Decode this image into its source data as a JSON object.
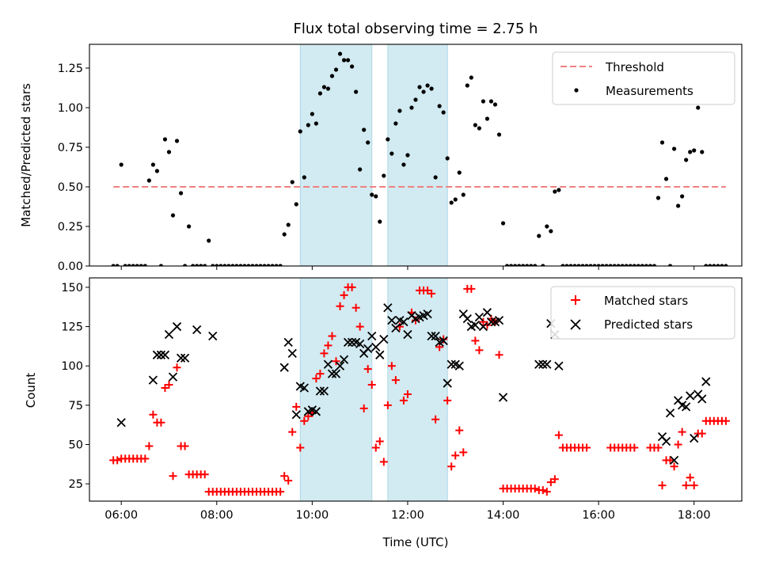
{
  "title": "Flux total observing time = 2.75 h",
  "colors": {
    "threshold": "#f08080",
    "matched": "#ff0000",
    "predicted": "#000000",
    "band": "#add8e6"
  },
  "chart_data": [
    {
      "type": "scatter",
      "ylabel": "Matched/Predicted stars",
      "ylim": [
        0,
        1.4
      ],
      "yticks": [
        "0.00",
        "0.25",
        "0.50",
        "0.75",
        "1.00",
        "1.25"
      ],
      "threshold": {
        "name": "Threshold",
        "value": 0.5,
        "x_range": [
          "05:50",
          "18:40"
        ]
      },
      "legend": {
        "placement": "upper right",
        "entries": [
          "Threshold",
          "Measurements"
        ]
      },
      "shaded_intervals": [
        [
          "09:45",
          "11:15"
        ],
        [
          "11:35",
          "12:50"
        ]
      ],
      "series": [
        {
          "name": "Measurements",
          "x": [
            "05:50",
            "05:55",
            "06:00",
            "06:05",
            "06:10",
            "06:15",
            "06:20",
            "06:25",
            "06:30",
            "06:35",
            "06:40",
            "06:45",
            "06:50",
            "06:55",
            "07:00",
            "07:05",
            "07:10",
            "07:15",
            "07:20",
            "07:25",
            "07:30",
            "07:35",
            "07:40",
            "07:45",
            "07:50",
            "07:55",
            "08:00",
            "08:05",
            "08:10",
            "08:15",
            "08:20",
            "08:25",
            "08:30",
            "08:35",
            "08:40",
            "08:45",
            "08:50",
            "08:55",
            "09:00",
            "09:05",
            "09:10",
            "09:15",
            "09:20",
            "09:25",
            "09:30",
            "09:35",
            "09:40",
            "09:45",
            "09:50",
            "09:55",
            "10:00",
            "10:05",
            "10:10",
            "10:15",
            "10:20",
            "10:25",
            "10:30",
            "10:35",
            "10:40",
            "10:45",
            "10:50",
            "10:55",
            "11:00",
            "11:05",
            "11:10",
            "11:15",
            "11:20",
            "11:25",
            "11:30",
            "11:35",
            "11:40",
            "11:45",
            "11:50",
            "11:55",
            "12:00",
            "12:05",
            "12:10",
            "12:15",
            "12:20",
            "12:25",
            "12:30",
            "12:35",
            "12:40",
            "12:45",
            "12:50",
            "12:55",
            "13:00",
            "13:05",
            "13:10",
            "13:15",
            "13:20",
            "13:25",
            "13:30",
            "13:35",
            "13:40",
            "13:45",
            "13:50",
            "13:55",
            "14:00",
            "14:05",
            "14:10",
            "14:15",
            "14:20",
            "14:25",
            "14:30",
            "14:35",
            "14:40",
            "14:45",
            "14:50",
            "14:55",
            "15:00",
            "15:05",
            "15:10",
            "15:15",
            "15:20",
            "15:25",
            "15:30",
            "15:35",
            "15:40",
            "15:45",
            "15:50",
            "15:55",
            "16:00",
            "16:05",
            "16:10",
            "16:15",
            "16:20",
            "16:25",
            "16:30",
            "16:35",
            "16:40",
            "16:45",
            "16:50",
            "16:55",
            "17:00",
            "17:05",
            "17:10",
            "17:15",
            "17:20",
            "17:25",
            "17:30",
            "17:35",
            "17:40",
            "17:45",
            "17:50",
            "17:55",
            "18:00",
            "18:05",
            "18:10",
            "18:15",
            "18:20",
            "18:25",
            "18:30",
            "18:35",
            "18:40"
          ],
          "y": [
            0.0,
            0.0,
            0.64,
            0.0,
            0.0,
            0.0,
            0.0,
            0.0,
            0.0,
            0.54,
            0.64,
            0.6,
            0.0,
            0.8,
            0.72,
            0.32,
            0.79,
            0.46,
            0.0,
            0.25,
            0.0,
            0.0,
            0.0,
            0.0,
            0.16,
            0.0,
            0.0,
            0.0,
            0.0,
            0.0,
            0.0,
            0.0,
            0.0,
            0.0,
            0.0,
            0.0,
            0.0,
            0.0,
            0.0,
            0.0,
            0.0,
            0.0,
            0.0,
            0.2,
            0.26,
            0.53,
            0.39,
            0.85,
            0.56,
            0.89,
            0.96,
            0.9,
            1.09,
            1.13,
            1.12,
            1.2,
            1.24,
            1.34,
            1.3,
            1.3,
            1.26,
            1.1,
            0.61,
            0.86,
            0.78,
            0.45,
            0.44,
            0.28,
            0.57,
            0.8,
            0.71,
            0.9,
            0.98,
            0.64,
            0.7,
            1.0,
            1.05,
            1.13,
            1.1,
            1.14,
            1.12,
            0.56,
            1.01,
            0.97,
            0.68,
            0.4,
            0.42,
            0.59,
            0.45,
            1.14,
            1.19,
            0.89,
            0.87,
            1.04,
            0.93,
            1.04,
            1.02,
            0.83,
            0.27,
            0.0,
            0.0,
            0.0,
            0.0,
            0.0,
            0.0,
            0.0,
            0.0,
            0.19,
            0.0,
            0.25,
            0.22,
            0.47,
            0.48,
            0.0,
            0.0,
            0.0,
            0.0,
            0.0,
            0.0,
            0.0,
            0.0,
            0.0,
            0.0,
            0.0,
            0.0,
            0.0,
            0.0,
            0.0,
            0.0,
            0.0,
            0.0,
            0.0,
            0.0,
            0.0,
            0.0,
            0.0,
            0.0,
            0.43,
            0.78,
            0.55,
            0.0,
            0.74,
            0.38,
            0.44,
            0.67,
            0.72,
            0.73,
            1.0,
            0.72,
            0.0,
            0.0,
            0.0,
            0.0,
            0.0,
            0.0
          ]
        }
      ]
    },
    {
      "type": "scatter",
      "xlabel": "Time (UTC)",
      "ylabel": "Count",
      "ylim": [
        14,
        156
      ],
      "yticks": [
        "25",
        "50",
        "75",
        "100",
        "125",
        "150"
      ],
      "xticks": [
        "06:00",
        "08:00",
        "10:00",
        "12:00",
        "14:00",
        "16:00",
        "18:00"
      ],
      "legend": {
        "placement": "upper right",
        "entries": [
          "Matched stars",
          "Predicted stars"
        ]
      },
      "shaded_intervals": [
        [
          "09:45",
          "11:15"
        ],
        [
          "11:35",
          "12:50"
        ]
      ],
      "series": [
        {
          "name": "Matched stars",
          "marker": "plus",
          "x": [
            "05:50",
            "05:55",
            "06:00",
            "06:05",
            "06:10",
            "06:15",
            "06:20",
            "06:25",
            "06:30",
            "06:35",
            "06:40",
            "06:45",
            "06:50",
            "06:55",
            "07:00",
            "07:05",
            "07:10",
            "07:15",
            "07:20",
            "07:25",
            "07:30",
            "07:35",
            "07:40",
            "07:45",
            "07:50",
            "07:55",
            "08:00",
            "08:05",
            "08:10",
            "08:15",
            "08:20",
            "08:25",
            "08:30",
            "08:35",
            "08:40",
            "08:45",
            "08:50",
            "08:55",
            "09:00",
            "09:05",
            "09:10",
            "09:15",
            "09:20",
            "09:25",
            "09:30",
            "09:35",
            "09:40",
            "09:45",
            "09:50",
            "09:55",
            "10:00",
            "10:05",
            "10:10",
            "10:15",
            "10:20",
            "10:25",
            "10:30",
            "10:35",
            "10:40",
            "10:45",
            "10:50",
            "10:55",
            "11:00",
            "11:05",
            "11:10",
            "11:15",
            "11:20",
            "11:25",
            "11:30",
            "11:35",
            "11:40",
            "11:45",
            "11:50",
            "11:55",
            "12:00",
            "12:05",
            "12:10",
            "12:15",
            "12:20",
            "12:25",
            "12:30",
            "12:35",
            "12:40",
            "12:45",
            "12:50",
            "12:55",
            "13:00",
            "13:05",
            "13:10",
            "13:15",
            "13:20",
            "13:25",
            "13:30",
            "13:35",
            "13:40",
            "13:45",
            "13:50",
            "13:55",
            "14:00",
            "14:05",
            "14:10",
            "14:15",
            "14:20",
            "14:25",
            "14:30",
            "14:35",
            "14:40",
            "14:45",
            "14:50",
            "14:55",
            "15:00",
            "15:05",
            "15:10",
            "15:15",
            "15:20",
            "15:25",
            "15:30",
            "15:35",
            "15:40",
            "15:45",
            "16:15",
            "16:20",
            "16:25",
            "16:30",
            "16:35",
            "16:40",
            "16:45",
            "17:05",
            "17:10",
            "17:15",
            "17:20",
            "17:25",
            "17:30",
            "17:35",
            "17:40",
            "17:45",
            "17:50",
            "17:55",
            "18:00",
            "18:05",
            "18:10",
            "18:15",
            "18:20",
            "18:25",
            "18:30",
            "18:35",
            "18:40"
          ],
          "y": [
            40,
            40,
            41,
            41,
            41,
            41,
            41,
            41,
            41,
            49,
            69,
            64,
            64,
            86,
            88,
            30,
            99,
            49,
            49,
            31,
            31,
            31,
            31,
            31,
            20,
            20,
            20,
            20,
            20,
            20,
            20,
            20,
            20,
            20,
            20,
            20,
            20,
            20,
            20,
            20,
            20,
            20,
            20,
            30,
            27,
            58,
            74,
            48,
            65,
            68,
            70,
            92,
            95,
            108,
            113,
            119,
            103,
            138,
            145,
            150,
            150,
            137,
            125,
            73,
            98,
            88,
            48,
            52,
            39,
            75,
            100,
            91,
            125,
            78,
            82,
            134,
            129,
            148,
            148,
            148,
            146,
            66,
            112,
            117,
            78,
            36,
            43,
            59,
            45,
            149,
            149,
            116,
            110,
            128,
            126,
            130,
            128,
            107,
            22,
            22,
            22,
            22,
            22,
            22,
            22,
            22,
            22,
            21,
            21,
            20,
            26,
            28,
            56,
            48,
            48,
            48,
            48,
            48,
            48,
            48,
            48,
            48,
            48,
            48,
            48,
            48,
            48,
            48,
            48,
            48,
            24,
            40,
            40,
            36,
            50,
            58,
            24,
            29,
            24,
            57,
            57,
            65,
            65,
            65,
            65,
            65,
            65
          ]
        },
        {
          "name": "Predicted stars",
          "marker": "x",
          "x": [
            "06:00",
            "06:40",
            "06:45",
            "06:50",
            "06:55",
            "07:00",
            "07:05",
            "07:10",
            "07:15",
            "07:20",
            "07:35",
            "07:55",
            "09:25",
            "09:30",
            "09:35",
            "09:40",
            "09:45",
            "09:50",
            "09:55",
            "10:00",
            "10:05",
            "10:10",
            "10:15",
            "10:20",
            "10:25",
            "10:30",
            "10:35",
            "10:40",
            "10:45",
            "10:50",
            "10:55",
            "11:00",
            "11:05",
            "11:10",
            "11:15",
            "11:20",
            "11:25",
            "11:30",
            "11:35",
            "11:40",
            "11:45",
            "11:50",
            "11:55",
            "12:00",
            "12:05",
            "12:10",
            "12:15",
            "12:20",
            "12:25",
            "12:30",
            "12:35",
            "12:40",
            "12:45",
            "12:50",
            "12:55",
            "13:00",
            "13:05",
            "13:10",
            "13:15",
            "13:20",
            "13:25",
            "13:30",
            "13:35",
            "13:40",
            "13:45",
            "13:50",
            "13:55",
            "14:00",
            "14:45",
            "14:50",
            "14:55",
            "15:00",
            "15:05",
            "15:10",
            "17:20",
            "17:25",
            "17:30",
            "17:35",
            "17:40",
            "17:45",
            "17:50",
            "17:55",
            "18:00",
            "18:05",
            "18:10",
            "18:15"
          ],
          "y": [
            64,
            91,
            107,
            107,
            107,
            120,
            93,
            125,
            105,
            105,
            123,
            119,
            99,
            115,
            108,
            69,
            87,
            86,
            71,
            72,
            71,
            84,
            84,
            101,
            95,
            95,
            100,
            104,
            115,
            115,
            115,
            114,
            108,
            111,
            119,
            112,
            107,
            117,
            137,
            129,
            124,
            129,
            128,
            120,
            132,
            130,
            131,
            132,
            133,
            119,
            119,
            115,
            116,
            89,
            101,
            101,
            100,
            133,
            130,
            125,
            126,
            131,
            125,
            134,
            128,
            128,
            129,
            80,
            101,
            101,
            101,
            127,
            120,
            100,
            55,
            52,
            70,
            40,
            78,
            75,
            74,
            81,
            54,
            82,
            79,
            90
          ]
        }
      ]
    }
  ]
}
